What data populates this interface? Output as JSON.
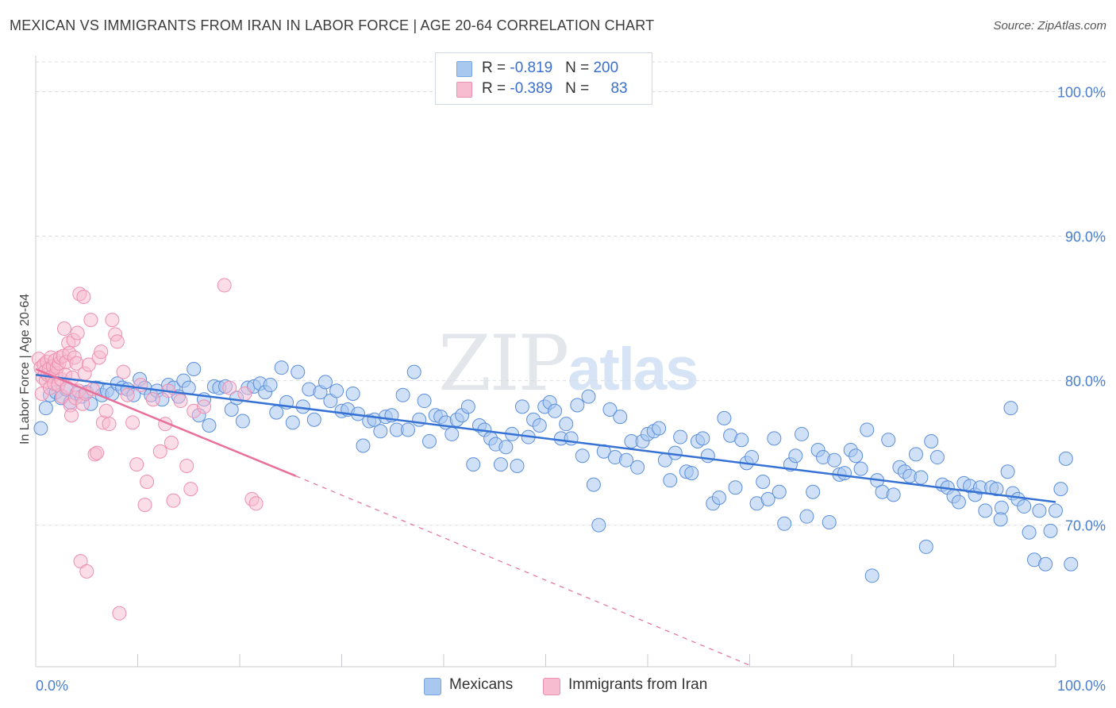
{
  "header": {
    "title": "MEXICAN VS IMMIGRANTS FROM IRAN IN LABOR FORCE | AGE 20-64 CORRELATION CHART",
    "source": "Source: ZipAtlas.com"
  },
  "watermark": {
    "zip": "ZIP",
    "atlas": "atlas"
  },
  "legend": {
    "rows": [
      {
        "r_label": "R = ",
        "r_value": "-0.819",
        "n_label": "N = ",
        "n_value": "200",
        "color": "#a9c8f0",
        "border": "#7aa6e0"
      },
      {
        "r_label": "R = ",
        "r_value": "-0.389",
        "n_label": "N = ",
        "n_value": "83",
        "color": "#f8bcd0",
        "border": "#ec8fb0"
      }
    ]
  },
  "bottom_legend": [
    {
      "label": "Mexicans",
      "color": "#a9c8f0",
      "border": "#7aa6e0"
    },
    {
      "label": "Immigrants from Iran",
      "color": "#f8bcd0",
      "border": "#ec8fb0"
    }
  ],
  "chart_data": {
    "type": "scatter",
    "title": "MEXICAN VS IMMIGRANTS FROM IRAN IN LABOR FORCE | AGE 20-64 CORRELATION CHART",
    "ylabel": "In Labor Force | Age 20-64",
    "xlabel": "",
    "xlim": [
      0,
      100
    ],
    "ylim": [
      60.2,
      102.5
    ],
    "x_tick_labels": [
      "0.0%",
      "100.0%"
    ],
    "y_ticks": [
      70,
      80,
      90,
      100
    ],
    "y_tick_labels": [
      "70.0%",
      "80.0%",
      "90.0%",
      "100.0%"
    ],
    "grid": "horizontal dashed",
    "legend_position": "top-center",
    "colors": {
      "mexicans": "#5b8fdc",
      "iran": "#ee8eb0",
      "blue_line": "#3572d4",
      "pink_line": "#e8709a",
      "tick_label": "#4a7fd0"
    },
    "series": [
      {
        "name": "Mexicans",
        "R": -0.819,
        "N": 200,
        "trend": {
          "x0": 0.0,
          "y0": 80.4,
          "x1": 100.0,
          "y1": 71.6
        },
        "points": [
          [
            0.5,
            76.7
          ],
          [
            1.0,
            78.1
          ],
          [
            1.4,
            79.0
          ],
          [
            2.0,
            79.2
          ],
          [
            2.5,
            78.8
          ],
          [
            3.0,
            79.4
          ],
          [
            3.4,
            78.5
          ],
          [
            4.0,
            79.1
          ],
          [
            4.5,
            78.9
          ],
          [
            5.0,
            79.2
          ],
          [
            5.4,
            78.4
          ],
          [
            6.0,
            79.5
          ],
          [
            6.5,
            79.0
          ],
          [
            7.0,
            79.3
          ],
          [
            7.5,
            79.1
          ],
          [
            8.0,
            79.8
          ],
          [
            8.5,
            79.5
          ],
          [
            9.0,
            79.4
          ],
          [
            9.6,
            79.0
          ],
          [
            10.2,
            80.1
          ],
          [
            10.7,
            79.5
          ],
          [
            11.3,
            79.0
          ],
          [
            11.9,
            79.3
          ],
          [
            12.4,
            78.7
          ],
          [
            13.0,
            79.7
          ],
          [
            13.5,
            79.5
          ],
          [
            14.0,
            78.9
          ],
          [
            14.5,
            80.0
          ],
          [
            15.0,
            79.5
          ],
          [
            15.5,
            80.8
          ],
          [
            16.0,
            77.6
          ],
          [
            16.5,
            78.7
          ],
          [
            17.0,
            76.9
          ],
          [
            17.5,
            79.6
          ],
          [
            18.0,
            79.5
          ],
          [
            18.6,
            79.6
          ],
          [
            19.2,
            78.0
          ],
          [
            19.7,
            78.8
          ],
          [
            20.3,
            77.2
          ],
          [
            20.8,
            79.5
          ],
          [
            21.4,
            79.6
          ],
          [
            22.0,
            79.8
          ],
          [
            22.5,
            79.2
          ],
          [
            23.0,
            79.7
          ],
          [
            23.6,
            77.8
          ],
          [
            24.1,
            80.9
          ],
          [
            24.6,
            78.5
          ],
          [
            25.2,
            77.1
          ],
          [
            25.7,
            80.6
          ],
          [
            26.2,
            78.2
          ],
          [
            26.8,
            79.4
          ],
          [
            27.3,
            77.3
          ],
          [
            27.9,
            79.2
          ],
          [
            28.4,
            79.9
          ],
          [
            28.9,
            78.6
          ],
          [
            29.5,
            79.3
          ],
          [
            30.0,
            77.9
          ],
          [
            30.6,
            78.0
          ],
          [
            31.1,
            79.1
          ],
          [
            31.6,
            77.7
          ],
          [
            32.1,
            75.5
          ],
          [
            32.7,
            77.2
          ],
          [
            33.2,
            77.3
          ],
          [
            33.8,
            76.5
          ],
          [
            34.3,
            77.5
          ],
          [
            34.9,
            77.6
          ],
          [
            35.4,
            76.6
          ],
          [
            36.0,
            79.0
          ],
          [
            36.5,
            76.6
          ],
          [
            37.1,
            80.6
          ],
          [
            37.6,
            77.3
          ],
          [
            38.1,
            78.6
          ],
          [
            38.6,
            75.8
          ],
          [
            39.2,
            77.6
          ],
          [
            39.7,
            77.5
          ],
          [
            40.2,
            77.1
          ],
          [
            40.8,
            76.3
          ],
          [
            41.3,
            77.3
          ],
          [
            41.8,
            77.6
          ],
          [
            42.4,
            78.2
          ],
          [
            42.9,
            74.2
          ],
          [
            43.5,
            76.9
          ],
          [
            44.0,
            76.6
          ],
          [
            44.6,
            76.0
          ],
          [
            45.1,
            75.6
          ],
          [
            45.6,
            74.2
          ],
          [
            46.1,
            75.4
          ],
          [
            46.7,
            76.3
          ],
          [
            47.2,
            74.1
          ],
          [
            47.7,
            78.2
          ],
          [
            48.3,
            76.1
          ],
          [
            48.8,
            77.3
          ],
          [
            49.4,
            76.9
          ],
          [
            49.9,
            78.2
          ],
          [
            50.4,
            78.5
          ],
          [
            50.9,
            77.9
          ],
          [
            51.5,
            76.0
          ],
          [
            52.0,
            77.0
          ],
          [
            52.5,
            76.0
          ],
          [
            53.1,
            78.3
          ],
          [
            53.6,
            74.8
          ],
          [
            54.2,
            78.9
          ],
          [
            54.7,
            72.8
          ],
          [
            55.2,
            70.0
          ],
          [
            55.7,
            75.1
          ],
          [
            56.3,
            78.0
          ],
          [
            56.8,
            74.7
          ],
          [
            57.3,
            77.5
          ],
          [
            57.9,
            74.5
          ],
          [
            58.4,
            75.8
          ],
          [
            59.0,
            74.0
          ],
          [
            59.5,
            75.8
          ],
          [
            60.0,
            76.3
          ],
          [
            60.6,
            76.5
          ],
          [
            61.1,
            76.7
          ],
          [
            61.7,
            74.5
          ],
          [
            62.2,
            73.1
          ],
          [
            62.7,
            75.0
          ],
          [
            63.2,
            76.1
          ],
          [
            63.8,
            73.7
          ],
          [
            64.3,
            73.6
          ],
          [
            64.9,
            75.8
          ],
          [
            65.4,
            76.0
          ],
          [
            65.9,
            74.8
          ],
          [
            66.4,
            71.5
          ],
          [
            67.0,
            71.9
          ],
          [
            67.5,
            77.4
          ],
          [
            68.1,
            76.2
          ],
          [
            68.6,
            72.6
          ],
          [
            69.2,
            75.9
          ],
          [
            69.7,
            74.3
          ],
          [
            70.2,
            74.7
          ],
          [
            70.7,
            71.5
          ],
          [
            71.3,
            73.0
          ],
          [
            71.8,
            71.8
          ],
          [
            72.4,
            76.0
          ],
          [
            72.9,
            72.3
          ],
          [
            73.4,
            70.1
          ],
          [
            74.0,
            74.2
          ],
          [
            74.5,
            74.8
          ],
          [
            75.1,
            76.3
          ],
          [
            75.6,
            70.6
          ],
          [
            76.2,
            72.3
          ],
          [
            76.7,
            75.2
          ],
          [
            77.2,
            74.7
          ],
          [
            77.8,
            70.2
          ],
          [
            78.3,
            74.5
          ],
          [
            78.8,
            73.5
          ],
          [
            79.3,
            73.6
          ],
          [
            79.9,
            75.2
          ],
          [
            80.4,
            74.8
          ],
          [
            80.9,
            73.9
          ],
          [
            81.5,
            76.6
          ],
          [
            82.0,
            66.5
          ],
          [
            82.5,
            73.1
          ],
          [
            83.0,
            72.3
          ],
          [
            83.6,
            75.9
          ],
          [
            84.1,
            72.1
          ],
          [
            84.7,
            74.0
          ],
          [
            85.2,
            73.7
          ],
          [
            85.7,
            73.4
          ],
          [
            86.3,
            74.9
          ],
          [
            86.8,
            73.3
          ],
          [
            87.3,
            68.5
          ],
          [
            87.8,
            75.8
          ],
          [
            88.4,
            74.7
          ],
          [
            88.9,
            72.8
          ],
          [
            89.4,
            72.6
          ],
          [
            90.0,
            72.0
          ],
          [
            90.5,
            71.6
          ],
          [
            91.0,
            72.9
          ],
          [
            91.6,
            72.7
          ],
          [
            92.1,
            72.1
          ],
          [
            92.6,
            72.6
          ],
          [
            93.1,
            71.0
          ],
          [
            93.7,
            72.6
          ],
          [
            94.2,
            72.5
          ],
          [
            94.7,
            71.2
          ],
          [
            95.3,
            73.7
          ],
          [
            95.8,
            72.2
          ],
          [
            96.3,
            71.8
          ],
          [
            96.9,
            71.3
          ],
          [
            97.4,
            69.5
          ],
          [
            97.9,
            67.6
          ],
          [
            98.4,
            71.0
          ],
          [
            99.0,
            67.3
          ],
          [
            99.5,
            69.6
          ],
          [
            100.0,
            71.0
          ],
          [
            100.5,
            72.5
          ],
          [
            101.0,
            74.6
          ],
          [
            101.5,
            67.3
          ],
          [
            95.6,
            78.1
          ],
          [
            94.6,
            70.4
          ]
        ]
      },
      {
        "name": "Immigrants from Iran",
        "R": -0.389,
        "N": 83,
        "trend": {
          "x0": 0.0,
          "y0": 80.8,
          "x1": 25.5,
          "y1": 73.4
        },
        "trend_extension": {
          "x0": 25.5,
          "y0": 73.4,
          "x1": 70.0,
          "y1": 60.3
        },
        "points": [
          [
            0.3,
            81.5
          ],
          [
            0.5,
            80.9
          ],
          [
            0.6,
            79.1
          ],
          [
            0.7,
            80.2
          ],
          [
            0.8,
            81.1
          ],
          [
            0.9,
            80.6
          ],
          [
            1.0,
            80.0
          ],
          [
            1.1,
            81.3
          ],
          [
            1.2,
            80.4
          ],
          [
            1.3,
            80.8
          ],
          [
            1.4,
            79.5
          ],
          [
            1.5,
            81.6
          ],
          [
            1.6,
            80.3
          ],
          [
            1.7,
            81.0
          ],
          [
            1.8,
            79.8
          ],
          [
            1.9,
            81.4
          ],
          [
            2.0,
            80.5
          ],
          [
            2.1,
            80.9
          ],
          [
            2.2,
            79.7
          ],
          [
            2.3,
            81.2
          ],
          [
            2.4,
            81.6
          ],
          [
            2.5,
            80.1
          ],
          [
            2.6,
            78.9
          ],
          [
            2.7,
            81.7
          ],
          [
            2.8,
            83.6
          ],
          [
            2.9,
            80.4
          ],
          [
            3.0,
            81.3
          ],
          [
            3.1,
            79.5
          ],
          [
            3.2,
            82.6
          ],
          [
            3.3,
            81.9
          ],
          [
            3.4,
            78.3
          ],
          [
            3.5,
            77.6
          ],
          [
            3.6,
            80.2
          ],
          [
            3.7,
            82.8
          ],
          [
            3.8,
            81.6
          ],
          [
            3.9,
            78.8
          ],
          [
            4.0,
            81.2
          ],
          [
            4.1,
            83.3
          ],
          [
            4.2,
            79.3
          ],
          [
            4.3,
            86.0
          ],
          [
            4.4,
            67.5
          ],
          [
            4.6,
            78.4
          ],
          [
            4.7,
            85.8
          ],
          [
            4.8,
            80.5
          ],
          [
            4.9,
            79.1
          ],
          [
            5.0,
            66.8
          ],
          [
            5.2,
            81.1
          ],
          [
            5.4,
            84.2
          ],
          [
            5.6,
            79.4
          ],
          [
            5.8,
            74.9
          ],
          [
            6.0,
            75.0
          ],
          [
            6.2,
            81.6
          ],
          [
            6.4,
            82.0
          ],
          [
            6.6,
            77.1
          ],
          [
            6.9,
            77.9
          ],
          [
            7.2,
            77.0
          ],
          [
            7.5,
            84.2
          ],
          [
            7.8,
            83.2
          ],
          [
            8.0,
            82.7
          ],
          [
            8.2,
            63.9
          ],
          [
            8.6,
            80.6
          ],
          [
            9.0,
            79.0
          ],
          [
            9.5,
            77.1
          ],
          [
            9.9,
            74.2
          ],
          [
            10.3,
            79.7
          ],
          [
            10.7,
            71.4
          ],
          [
            10.9,
            73.0
          ],
          [
            11.5,
            78.7
          ],
          [
            12.2,
            75.1
          ],
          [
            12.7,
            77.0
          ],
          [
            13.0,
            79.3
          ],
          [
            13.3,
            75.7
          ],
          [
            13.5,
            71.7
          ],
          [
            14.2,
            78.6
          ],
          [
            14.8,
            74.1
          ],
          [
            15.2,
            72.5
          ],
          [
            15.5,
            77.9
          ],
          [
            16.5,
            78.2
          ],
          [
            18.5,
            86.6
          ],
          [
            19.0,
            79.5
          ],
          [
            20.5,
            79.1
          ],
          [
            21.2,
            71.8
          ],
          [
            21.6,
            71.5
          ]
        ]
      }
    ]
  }
}
